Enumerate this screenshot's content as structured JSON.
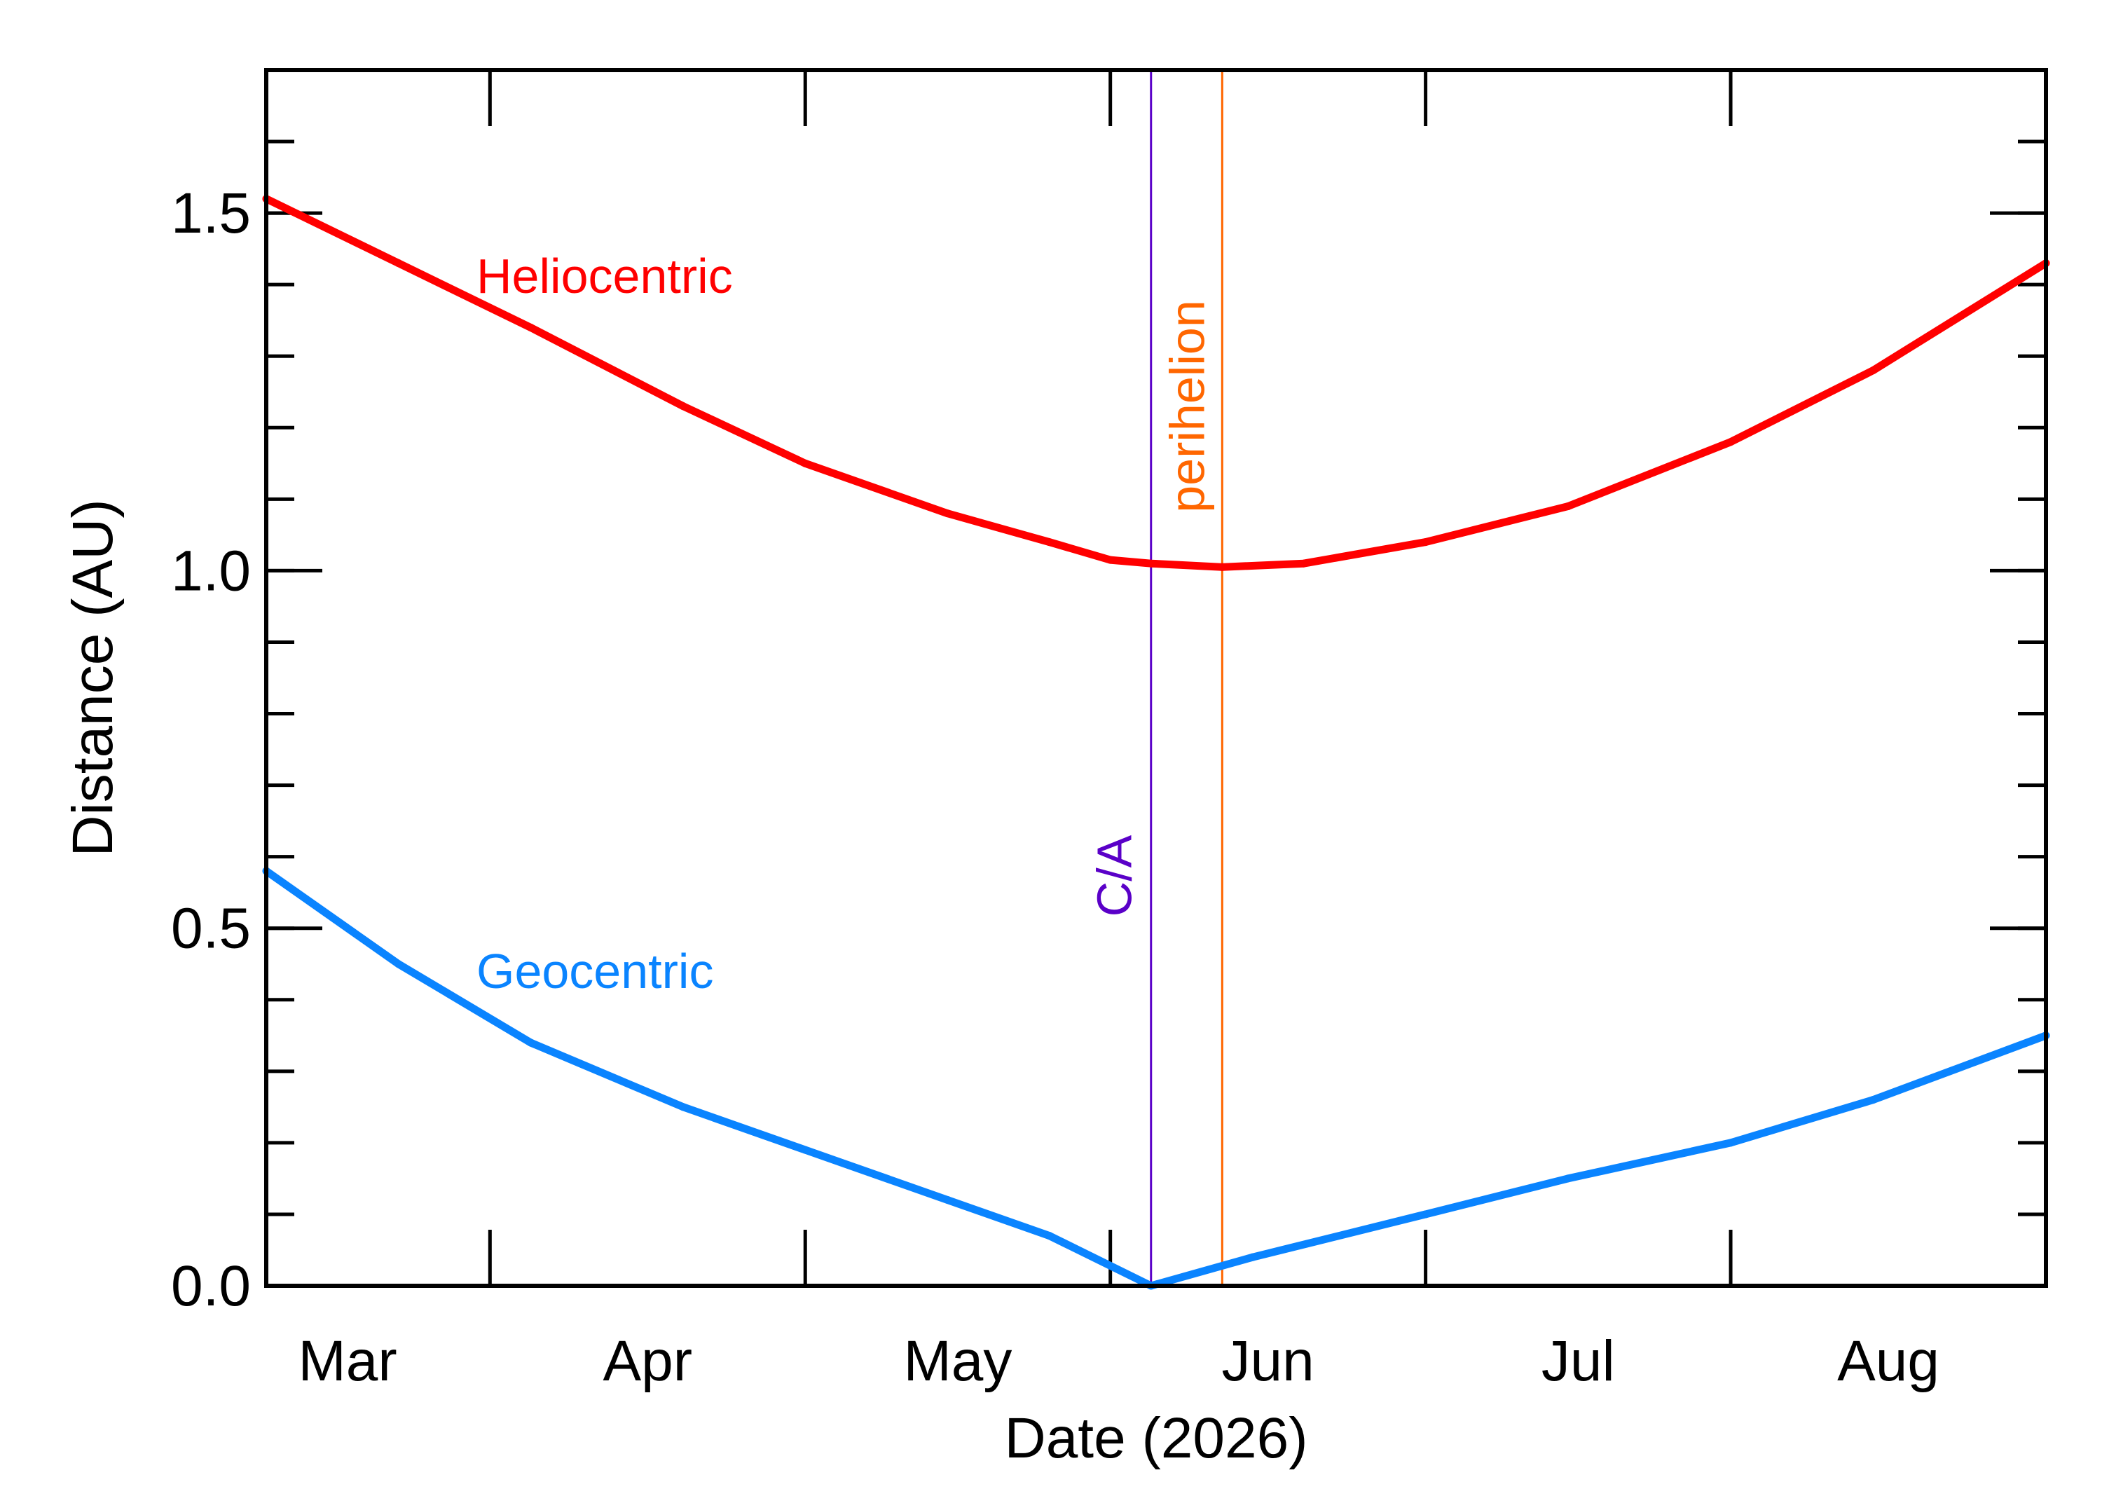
{
  "chart_data": {
    "type": "line",
    "xlabel": "Date (2026)",
    "ylabel": "Distance (AU)",
    "x_range": [
      "2026-02-07",
      "2026-08-01"
    ],
    "ylim": [
      0.0,
      1.7
    ],
    "month_ticks": [
      {
        "label": "Mar",
        "date": "2026-03-01"
      },
      {
        "label": "Apr",
        "date": "2026-04-01"
      },
      {
        "label": "May",
        "date": "2026-05-01"
      },
      {
        "label": "Jun",
        "date": "2026-06-01"
      },
      {
        "label": "Jul",
        "date": "2026-07-01"
      },
      {
        "label": "Aug",
        "date": "2026-08-01"
      }
    ],
    "y_ticks": [
      {
        "label": "0.0",
        "value": 0.0
      },
      {
        "label": "0.5",
        "value": 0.5
      },
      {
        "label": "1.0",
        "value": 1.0
      },
      {
        "label": "1.5",
        "value": 1.5
      }
    ],
    "y_minor_step": 0.1,
    "grid": false,
    "series": [
      {
        "name": "Heliocentric",
        "color": "#ff0000",
        "points": [
          [
            "2026-02-07",
            1.52
          ],
          [
            "2026-02-20",
            1.43
          ],
          [
            "2026-03-05",
            1.34
          ],
          [
            "2026-03-20",
            1.23
          ],
          [
            "2026-04-01",
            1.15
          ],
          [
            "2026-04-15",
            1.08
          ],
          [
            "2026-04-25",
            1.04
          ],
          [
            "2026-05-01",
            1.015
          ],
          [
            "2026-05-05",
            1.01
          ],
          [
            "2026-05-12",
            1.005
          ],
          [
            "2026-05-20",
            1.01
          ],
          [
            "2026-06-01",
            1.04
          ],
          [
            "2026-06-15",
            1.09
          ],
          [
            "2026-07-01",
            1.18
          ],
          [
            "2026-07-15",
            1.28
          ],
          [
            "2026-08-01",
            1.43
          ]
        ]
      },
      {
        "name": "Geocentric",
        "color": "#0a84ff",
        "points": [
          [
            "2026-02-07",
            0.58
          ],
          [
            "2026-02-20",
            0.45
          ],
          [
            "2026-03-05",
            0.34
          ],
          [
            "2026-03-20",
            0.25
          ],
          [
            "2026-04-01",
            0.19
          ],
          [
            "2026-04-15",
            0.12
          ],
          [
            "2026-04-25",
            0.07
          ],
          [
            "2026-05-05",
            0.0
          ],
          [
            "2026-05-15",
            0.04
          ],
          [
            "2026-06-01",
            0.1
          ],
          [
            "2026-06-15",
            0.15
          ],
          [
            "2026-07-01",
            0.2
          ],
          [
            "2026-07-15",
            0.26
          ],
          [
            "2026-08-01",
            0.35
          ]
        ]
      }
    ],
    "markers": [
      {
        "label": "C/A",
        "date": "2026-05-05",
        "color": "#5a00c8"
      },
      {
        "label": "perihelion",
        "date": "2026-05-12",
        "color": "#ff6600"
      }
    ]
  }
}
